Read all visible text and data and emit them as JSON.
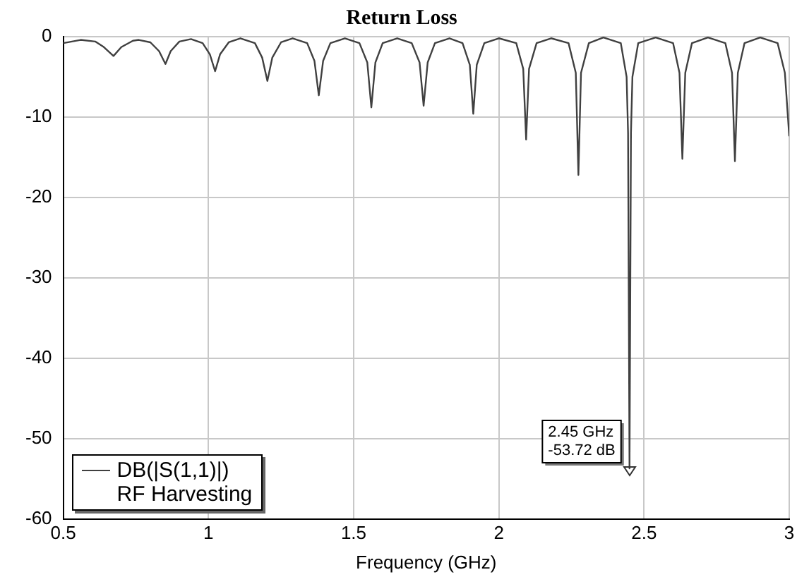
{
  "chart_data": {
    "type": "line",
    "title": "Return Loss",
    "xlabel": "Frequency (GHz)",
    "xlim": [
      0.5,
      3
    ],
    "xticks": [
      0.5,
      1,
      1.5,
      2,
      2.5,
      3
    ],
    "ylim": [
      -60,
      0
    ],
    "yticks": [
      0,
      -10,
      -20,
      -30,
      -40,
      -50,
      -60
    ],
    "grid": true,
    "legend": "bottom left",
    "marker": "none",
    "line_style": "solid",
    "annotations": [
      {
        "text": "2.45 GHz\n-53.72 dB",
        "x": 2.45,
        "y": -53.72
      }
    ],
    "series": [
      {
        "name": "DB(|S(1,1)|)\nRF Harvesting",
        "color": "#404040",
        "x": [
          0.5,
          0.56,
          0.61,
          0.64,
          0.673,
          0.7,
          0.74,
          0.76,
          0.8,
          0.83,
          0.852,
          0.87,
          0.9,
          0.94,
          0.98,
          1.005,
          1.023,
          1.04,
          1.07,
          1.11,
          1.16,
          1.185,
          1.203,
          1.22,
          1.25,
          1.29,
          1.34,
          1.365,
          1.38,
          1.395,
          1.42,
          1.47,
          1.52,
          1.547,
          1.561,
          1.575,
          1.6,
          1.65,
          1.7,
          1.727,
          1.741,
          1.755,
          1.78,
          1.83,
          1.875,
          1.9,
          1.912,
          1.924,
          1.95,
          2.0,
          2.06,
          2.084,
          2.094,
          2.104,
          2.13,
          2.18,
          2.24,
          2.265,
          2.274,
          2.283,
          2.31,
          2.36,
          2.42,
          2.44,
          2.445,
          2.45,
          2.455,
          2.46,
          2.48,
          2.54,
          2.6,
          2.622,
          2.632,
          2.642,
          2.665,
          2.72,
          2.78,
          2.803,
          2.813,
          2.823,
          2.846,
          2.9,
          2.96,
          2.985,
          3.0
        ],
        "values": [
          -0.8,
          -0.4,
          -0.6,
          -1.3,
          -2.4,
          -1.3,
          -0.5,
          -0.4,
          -0.7,
          -1.8,
          -3.4,
          -1.8,
          -0.6,
          -0.3,
          -0.8,
          -2.2,
          -4.3,
          -2.2,
          -0.7,
          -0.2,
          -0.8,
          -2.6,
          -5.5,
          -2.6,
          -0.7,
          -0.2,
          -0.8,
          -3.0,
          -7.3,
          -3.0,
          -0.8,
          -0.2,
          -0.8,
          -3.2,
          -8.8,
          -3.2,
          -0.8,
          -0.2,
          -0.8,
          -3.2,
          -8.6,
          -3.2,
          -0.8,
          -0.2,
          -0.8,
          -3.5,
          -9.6,
          -3.5,
          -0.8,
          -0.2,
          -0.8,
          -4.0,
          -12.8,
          -4.0,
          -0.8,
          -0.2,
          -0.8,
          -4.5,
          -17.2,
          -4.5,
          -0.8,
          -0.1,
          -0.8,
          -5.0,
          -12,
          -53.72,
          -12,
          -5.0,
          -0.8,
          -0.1,
          -0.8,
          -4.5,
          -15.2,
          -4.5,
          -0.8,
          -0.1,
          -0.8,
          -4.5,
          -15.5,
          -4.5,
          -0.8,
          -0.1,
          -0.8,
          -4.5,
          -12.4
        ]
      }
    ]
  }
}
